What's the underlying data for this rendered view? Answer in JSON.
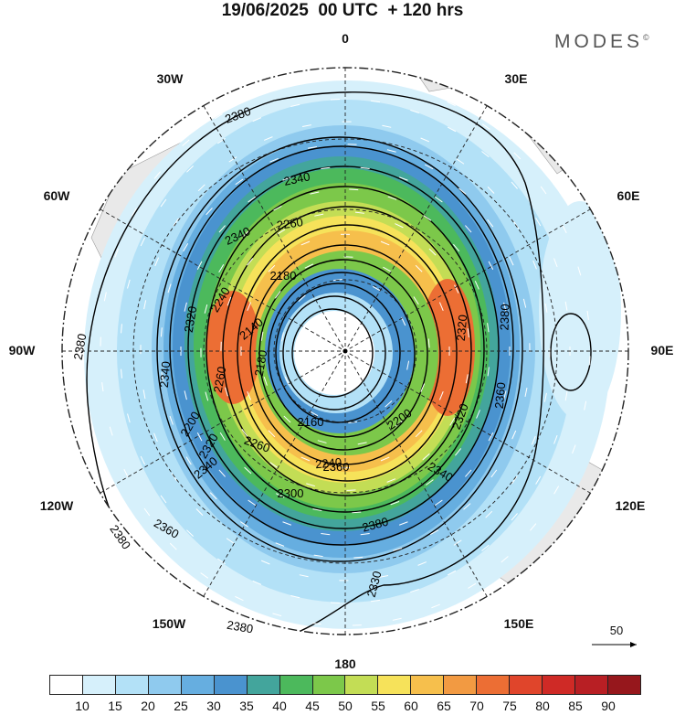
{
  "title": "19/06/2025  00 UTC  + 120 hrs",
  "logo": "MODES",
  "logo_mark": "©",
  "longitude_labels": {
    "top": "0",
    "top_right": "30E",
    "right_upper": "60E",
    "right": "90E",
    "right_lower": "120E",
    "bottom_right": "150E",
    "bottom": "180",
    "bottom_left": "150W",
    "left_lower": "120W",
    "left": "90W",
    "left_upper": "60W",
    "top_left": "30W"
  },
  "contour_labels": [
    "2380",
    "2340",
    "2340",
    "2260",
    "2320",
    "2240",
    "2180",
    "2140",
    "2320",
    "2180",
    "2260",
    "2340",
    "2200",
    "2320",
    "2360",
    "2340",
    "2380",
    "2160",
    "2200",
    "2260",
    "2240",
    "2300",
    "2340",
    "2320",
    "2360",
    "2380",
    "2380",
    "2380",
    "2380",
    "2330",
    "2360"
  ],
  "vector_scale_label": "50",
  "colorbar": {
    "colors": [
      "#ffffff",
      "#d6f0fb",
      "#b3e1f7",
      "#8fcaee",
      "#66aee0",
      "#4a93cf",
      "#43a59c",
      "#4cb95c",
      "#7cc84a",
      "#c3dd55",
      "#f6e25a",
      "#f6bf4c",
      "#f29a42",
      "#ec6e34",
      "#e0452b",
      "#cf2a26",
      "#b81f24",
      "#96171c"
    ],
    "labels": [
      "10",
      "15",
      "20",
      "25",
      "30",
      "35",
      "40",
      "45",
      "50",
      "55",
      "60",
      "65",
      "70",
      "75",
      "80",
      "85",
      "90"
    ]
  },
  "colors": {
    "land": "#e9e9e9",
    "contour": "#000000",
    "vectors": "#ffffff"
  }
}
